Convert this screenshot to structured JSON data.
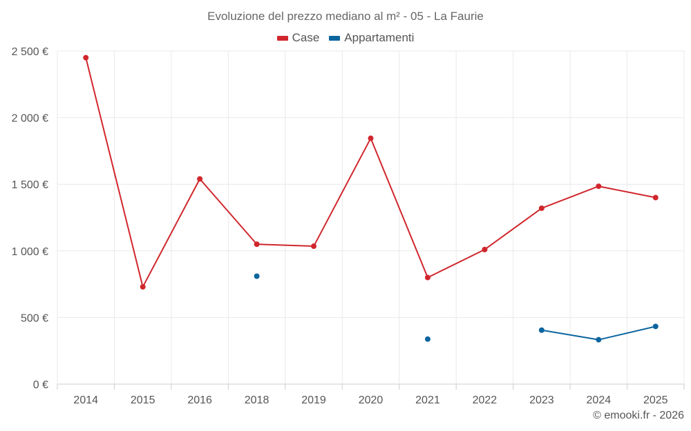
{
  "colors": {
    "case": "#d0262c",
    "appartamenti": "#0b659f",
    "grid": "#e9e9e9",
    "axis": "#cccccc"
  },
  "copyright": "© emooki.fr - 2026",
  "chart_data": {
    "type": "line",
    "title": "Evoluzione del prezzo mediano al m² - 05 - La Faurie",
    "categories": [
      "2014",
      "2015",
      "2016",
      "2018",
      "2019",
      "2020",
      "2021",
      "2022",
      "2023",
      "2024",
      "2025"
    ],
    "ylim": [
      0,
      2500
    ],
    "yticks": [
      0,
      500,
      1000,
      1500,
      2000,
      2500
    ],
    "ytick_labels": [
      "0 €",
      "500 €",
      "1 000 €",
      "1 500 €",
      "2 000 €",
      "2 500 €"
    ],
    "legend_position": "top-center",
    "series": [
      {
        "name": "Case",
        "values": [
          2450,
          730,
          1540,
          1050,
          1035,
          1845,
          800,
          1010,
          1320,
          1485,
          1400
        ]
      },
      {
        "name": "Appartamenti",
        "values": [
          null,
          null,
          null,
          810,
          null,
          null,
          338,
          null,
          405,
          333,
          433
        ]
      }
    ]
  }
}
